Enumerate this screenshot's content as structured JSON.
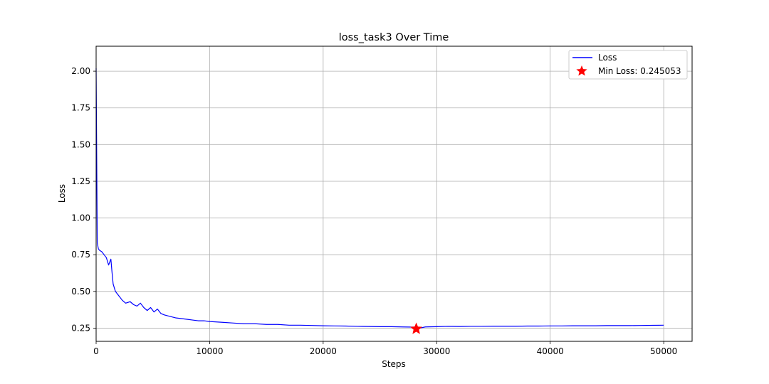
{
  "chart_data": {
    "type": "line",
    "title": "loss_task3 Over Time",
    "xlabel": "Steps",
    "ylabel": "Loss",
    "xlim": [
      0,
      52500
    ],
    "ylim": [
      0.16,
      2.17
    ],
    "xticks": [
      0,
      10000,
      20000,
      30000,
      40000,
      50000
    ],
    "xtick_labels": [
      "0",
      "10000",
      "20000",
      "30000",
      "40000",
      "50000"
    ],
    "yticks": [
      0.25,
      0.5,
      0.75,
      1.0,
      1.25,
      1.5,
      1.75,
      2.0
    ],
    "ytick_labels": [
      "0.25",
      "0.50",
      "0.75",
      "1.00",
      "1.25",
      "1.50",
      "1.75",
      "2.00"
    ],
    "grid": true,
    "legend_position": "top-right",
    "series": [
      {
        "name": "Loss",
        "color": "#0000ff",
        "x": [
          0,
          100,
          200,
          300,
          500,
          700,
          900,
          1100,
          1300,
          1400,
          1500,
          1700,
          2000,
          2300,
          2600,
          3000,
          3300,
          3600,
          3900,
          4200,
          4500,
          4800,
          5100,
          5400,
          5700,
          6000,
          6500,
          7000,
          7500,
          8000,
          8500,
          9000,
          9500,
          10000,
          11000,
          12000,
          13000,
          14000,
          15000,
          16000,
          17000,
          18000,
          19000,
          20000,
          21000,
          22000,
          23000,
          24000,
          25000,
          26000,
          27000,
          28000,
          28200,
          29000,
          30000,
          31000,
          32000,
          33000,
          34000,
          35000,
          36000,
          37000,
          38000,
          39000,
          40000,
          41000,
          42000,
          43000,
          44000,
          45000,
          46000,
          47000,
          48000,
          49000,
          50000
        ],
        "y": [
          2.02,
          0.83,
          0.79,
          0.78,
          0.77,
          0.75,
          0.73,
          0.68,
          0.72,
          0.63,
          0.55,
          0.5,
          0.47,
          0.44,
          0.42,
          0.43,
          0.41,
          0.4,
          0.42,
          0.39,
          0.37,
          0.39,
          0.36,
          0.38,
          0.35,
          0.34,
          0.33,
          0.32,
          0.315,
          0.31,
          0.305,
          0.3,
          0.3,
          0.295,
          0.29,
          0.285,
          0.28,
          0.28,
          0.275,
          0.275,
          0.27,
          0.27,
          0.268,
          0.266,
          0.265,
          0.264,
          0.262,
          0.261,
          0.26,
          0.26,
          0.258,
          0.257,
          0.245053,
          0.258,
          0.26,
          0.262,
          0.261,
          0.262,
          0.262,
          0.263,
          0.263,
          0.263,
          0.264,
          0.264,
          0.265,
          0.265,
          0.266,
          0.266,
          0.266,
          0.267,
          0.267,
          0.267,
          0.268,
          0.269,
          0.27
        ]
      }
    ],
    "min_point": {
      "label": "Min Loss: 0.245053",
      "x": 28200,
      "y": 0.245053,
      "color": "#ff0000",
      "marker": "star"
    }
  }
}
